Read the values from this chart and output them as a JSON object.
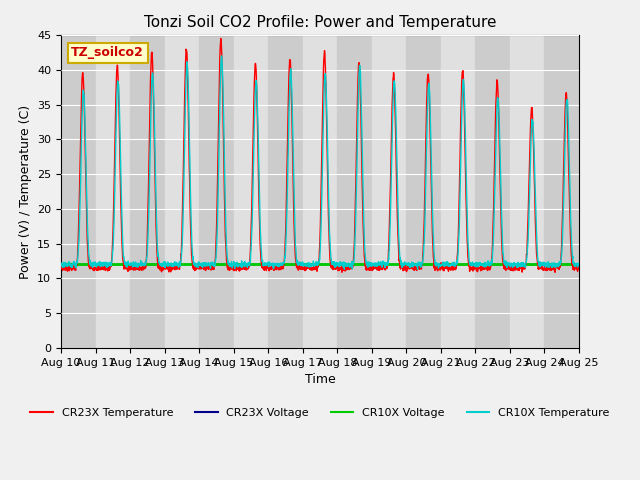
{
  "title": "Tonzi Soil CO2 Profile: Power and Temperature",
  "xlabel": "Time",
  "ylabel": "Power (V) / Temperature (C)",
  "ylim": [
    0,
    45
  ],
  "yticks": [
    0,
    5,
    10,
    15,
    20,
    25,
    30,
    35,
    40,
    45
  ],
  "n_days": 15,
  "x_labels": [
    "Aug 10",
    "Aug 11",
    "Aug 12",
    "Aug 13",
    "Aug 14",
    "Aug 15",
    "Aug 16",
    "Aug 17",
    "Aug 18",
    "Aug 19",
    "Aug 20",
    "Aug 21",
    "Aug 22",
    "Aug 23",
    "Aug 24",
    "Aug 25"
  ],
  "cr10x_voltage_value": 12.0,
  "annotation_text": "TZ_soilco2",
  "annotation_bg": "#ffffcc",
  "annotation_fg": "#cc0000",
  "annotation_edge": "#ccaa00",
  "cr23x_temp_color": "#ff0000",
  "cr23x_volt_color": "#00008b",
  "cr10x_volt_color": "#00cc00",
  "cr10x_temp_color": "#00cccc",
  "fig_bg": "#f0f0f0",
  "plot_bg": "#d8d8d8",
  "legend_labels": [
    "CR23X Temperature",
    "CR23X Voltage",
    "CR10X Voltage",
    "CR10X Temperature"
  ],
  "legend_colors": [
    "#ff0000",
    "#00008b",
    "#00cc00",
    "#00cccc"
  ],
  "cr23x_peaks": [
    39.5,
    40.5,
    42.5,
    43.0,
    44.5,
    41.0,
    41.5,
    42.5,
    41.0,
    39.5,
    39.5,
    40.0,
    38.5,
    34.5,
    36.5
  ],
  "cr10x_peaks": [
    37.0,
    38.5,
    39.5,
    41.0,
    42.0,
    38.5,
    40.0,
    39.5,
    40.5,
    38.5,
    38.0,
    38.5,
    36.0,
    33.0,
    36.0
  ],
  "cr23x_min": 11.5,
  "cr10x_min": 12.0,
  "band_colors": [
    "#cccccc",
    "#e0e0e0"
  ],
  "grid_color": "#ffffff"
}
